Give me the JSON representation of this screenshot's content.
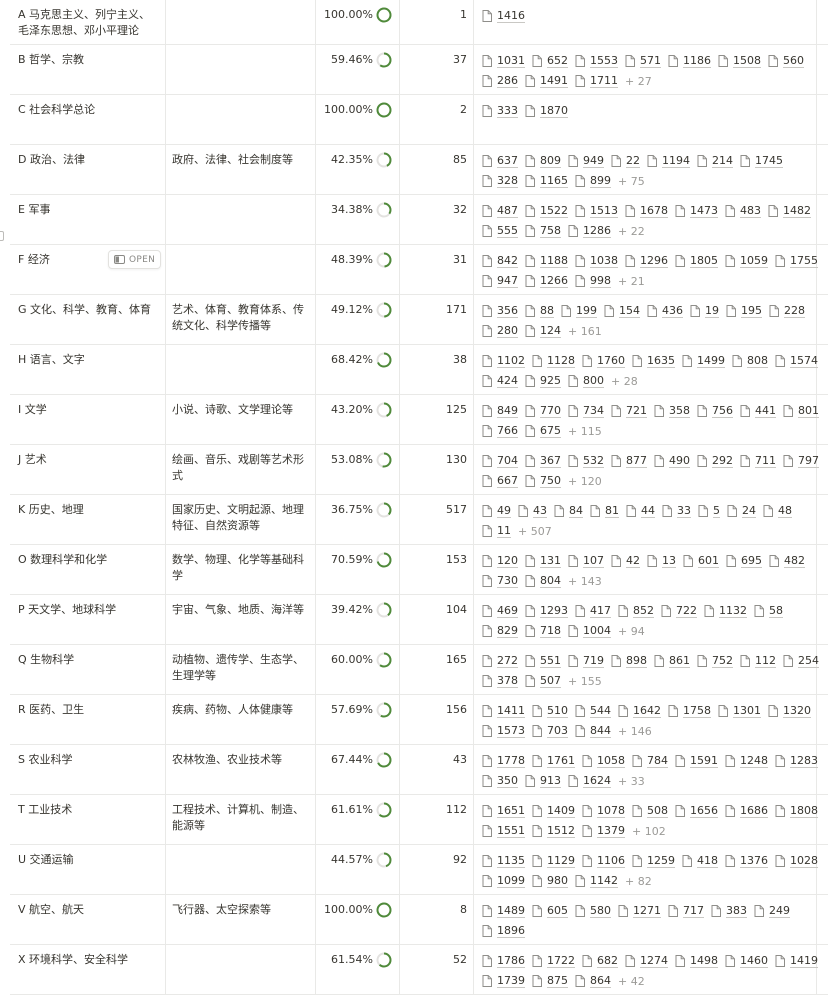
{
  "open_label": "OPEN",
  "colors": {
    "ring_track": "#e3e2e0",
    "ring_progress": "#4f8a3a",
    "ring_full": "#4f8a3a"
  },
  "rows": [
    {
      "name": "A 马克思主义、列宁主义、毛泽东思想、邓小平理论",
      "desc": "",
      "pct_text": "100.00%",
      "pct": 1.0,
      "count": "1",
      "pages": [
        [
          "1416"
        ]
      ],
      "more": ""
    },
    {
      "name": "B 哲学、宗教",
      "desc": "",
      "pct_text": "59.46%",
      "pct": 0.5946,
      "count": "37",
      "pages": [
        [
          "1031",
          "652",
          "1553",
          "571",
          "1186",
          "1508",
          "560"
        ],
        [
          "286",
          "1491",
          "1711"
        ]
      ],
      "more": "+ 27"
    },
    {
      "name": "C 社会科学总论",
      "desc": "",
      "pct_text": "100.00%",
      "pct": 1.0,
      "count": "2",
      "pages": [
        [
          "333",
          "1870"
        ]
      ],
      "more": ""
    },
    {
      "name": "D 政治、法律",
      "desc": "政府、法律、社会制度等",
      "pct_text": "42.35%",
      "pct": 0.4235,
      "count": "85",
      "pages": [
        [
          "637",
          "809",
          "949",
          "22",
          "1194",
          "214",
          "1745"
        ],
        [
          "328",
          "1165",
          "899"
        ]
      ],
      "more": "+ 75"
    },
    {
      "name": "E 军事",
      "desc": "",
      "pct_text": "34.38%",
      "pct": 0.3438,
      "count": "32",
      "pages": [
        [
          "487",
          "1522",
          "1513",
          "1678",
          "1473",
          "483",
          "1482"
        ],
        [
          "555",
          "758",
          "1286"
        ]
      ],
      "more": "+ 22"
    },
    {
      "name": "F 经济",
      "desc": "",
      "pct_text": "48.39%",
      "pct": 0.4839,
      "count": "31",
      "pages": [
        [
          "842",
          "1188",
          "1038",
          "1296",
          "1805",
          "1059",
          "1755"
        ],
        [
          "947",
          "1266",
          "998"
        ]
      ],
      "more": "+ 21",
      "open": true
    },
    {
      "name": "G 文化、科学、教育、体育",
      "desc": "艺术、体育、教育体系、传统文化、科学传播等",
      "pct_text": "49.12%",
      "pct": 0.4912,
      "count": "171",
      "pages": [
        [
          "356",
          "88",
          "199",
          "154",
          "436",
          "19",
          "195",
          "228"
        ],
        [
          "280",
          "124"
        ]
      ],
      "more": "+ 161"
    },
    {
      "name": "H 语言、文字",
      "desc": "",
      "pct_text": "68.42%",
      "pct": 0.6842,
      "count": "38",
      "pages": [
        [
          "1102",
          "1128",
          "1760",
          "1635",
          "1499",
          "808",
          "1574"
        ],
        [
          "424",
          "925",
          "800"
        ]
      ],
      "more": "+ 28"
    },
    {
      "name": "I 文学",
      "desc": "小说、诗歌、文学理论等",
      "pct_text": "43.20%",
      "pct": 0.432,
      "count": "125",
      "pages": [
        [
          "849",
          "770",
          "734",
          "721",
          "358",
          "756",
          "441",
          "801"
        ],
        [
          "766",
          "675"
        ]
      ],
      "more": "+ 115"
    },
    {
      "name": "J 艺术",
      "desc": "绘画、音乐、戏剧等艺术形式",
      "pct_text": "53.08%",
      "pct": 0.5308,
      "count": "130",
      "pages": [
        [
          "704",
          "367",
          "532",
          "877",
          "490",
          "292",
          "711",
          "797"
        ],
        [
          "667",
          "750"
        ]
      ],
      "more": "+ 120"
    },
    {
      "name": "K 历史、地理",
      "desc": "国家历史、文明起源、地理特征、自然资源等",
      "pct_text": "36.75%",
      "pct": 0.3675,
      "count": "517",
      "pages": [
        [
          "49",
          "43",
          "84",
          "81",
          "44",
          "33",
          "5",
          "24",
          "48"
        ],
        [
          "11"
        ]
      ],
      "more": "+ 507"
    },
    {
      "name": "O 数理科学和化学",
      "desc": "数学、物理、化学等基础科学",
      "pct_text": "70.59%",
      "pct": 0.7059,
      "count": "153",
      "pages": [
        [
          "120",
          "131",
          "107",
          "42",
          "13",
          "601",
          "695",
          "482"
        ],
        [
          "730",
          "804"
        ]
      ],
      "more": "+ 143"
    },
    {
      "name": "P 天文学、地球科学",
      "desc": "宇宙、气象、地质、海洋等",
      "pct_text": "39.42%",
      "pct": 0.3942,
      "count": "104",
      "pages": [
        [
          "469",
          "1293",
          "417",
          "852",
          "722",
          "1132",
          "58"
        ],
        [
          "829",
          "718",
          "1004"
        ]
      ],
      "more": "+ 94"
    },
    {
      "name": "Q 生物科学",
      "desc": "动植物、遗传学、生态学、生理学等",
      "pct_text": "60.00%",
      "pct": 0.6,
      "count": "165",
      "pages": [
        [
          "272",
          "551",
          "719",
          "898",
          "861",
          "752",
          "112",
          "254"
        ],
        [
          "378",
          "507"
        ]
      ],
      "more": "+ 155"
    },
    {
      "name": "R 医药、卫生",
      "desc": "疾病、药物、人体健康等",
      "pct_text": "57.69%",
      "pct": 0.5769,
      "count": "156",
      "pages": [
        [
          "1411",
          "510",
          "544",
          "1642",
          "1758",
          "1301",
          "1320"
        ],
        [
          "1573",
          "703",
          "844"
        ]
      ],
      "more": "+ 146"
    },
    {
      "name": "S 农业科学",
      "desc": "农林牧渔、农业技术等",
      "pct_text": "67.44%",
      "pct": 0.6744,
      "count": "43",
      "pages": [
        [
          "1778",
          "1761",
          "1058",
          "784",
          "1591",
          "1248",
          "1283"
        ],
        [
          "350",
          "913",
          "1624"
        ]
      ],
      "more": "+ 33"
    },
    {
      "name": "T 工业技术",
      "desc": "工程技术、计算机、制造、能源等",
      "pct_text": "61.61%",
      "pct": 0.6161,
      "count": "112",
      "pages": [
        [
          "1651",
          "1409",
          "1078",
          "508",
          "1656",
          "1686",
          "1808"
        ],
        [
          "1551",
          "1512",
          "1379"
        ]
      ],
      "more": "+ 102"
    },
    {
      "name": "U 交通运输",
      "desc": "",
      "pct_text": "44.57%",
      "pct": 0.4457,
      "count": "92",
      "pages": [
        [
          "1135",
          "1129",
          "1106",
          "1259",
          "418",
          "1376",
          "1028"
        ],
        [
          "1099",
          "980",
          "1142"
        ]
      ],
      "more": "+ 82"
    },
    {
      "name": "V 航空、航天",
      "desc": "飞行器、太空探索等",
      "pct_text": "100.00%",
      "pct": 1.0,
      "count": "8",
      "pages": [
        [
          "1489",
          "605",
          "580",
          "1271",
          "717",
          "383",
          "249"
        ],
        [
          "1896"
        ]
      ],
      "more": ""
    },
    {
      "name": "X 环境科学、安全科学",
      "desc": "",
      "pct_text": "61.54%",
      "pct": 0.6154,
      "count": "52",
      "pages": [
        [
          "1786",
          "1722",
          "682",
          "1274",
          "1498",
          "1460",
          "1419"
        ],
        [
          "1739",
          "875",
          "864"
        ]
      ],
      "more": "+ 42"
    }
  ]
}
